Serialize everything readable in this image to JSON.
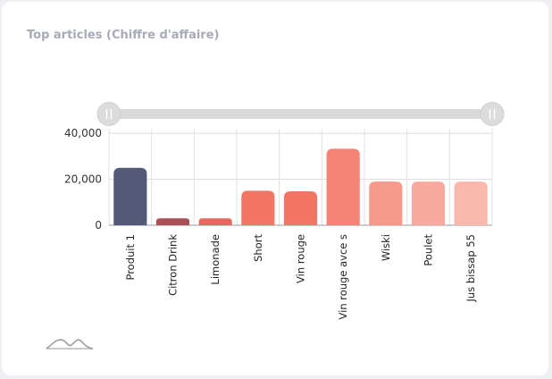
{
  "card": {
    "title": "Top articles (Chiffre d'affaire)",
    "mini_chart_icon": "mountain-sparkline-icon"
  },
  "chart_data": {
    "type": "bar",
    "title": "",
    "xlabel": "",
    "ylabel": "",
    "ylim": [
      0,
      42000
    ],
    "yticks": [
      0,
      20000,
      40000
    ],
    "ytick_labels": [
      "0",
      "20,000",
      "40,000"
    ],
    "grid": true,
    "legend": "none",
    "range_slider": {
      "start": 0,
      "end": 1
    },
    "categories": [
      "Produit 1",
      "Citron Drink",
      "Limonade",
      "Short",
      "Vin rouge",
      "Vin rouge avce s",
      "Wiski",
      "Poulet",
      "Jus bissap 55"
    ],
    "values": [
      25000,
      3000,
      3000,
      15000,
      14800,
      33300,
      19000,
      19000,
      19000
    ],
    "colors": [
      "#525a78",
      "#a84f57",
      "#e8675f",
      "#f27566",
      "#f27566",
      "#f58476",
      "#f79a8c",
      "#f9a99e",
      "#fab8ad"
    ]
  }
}
